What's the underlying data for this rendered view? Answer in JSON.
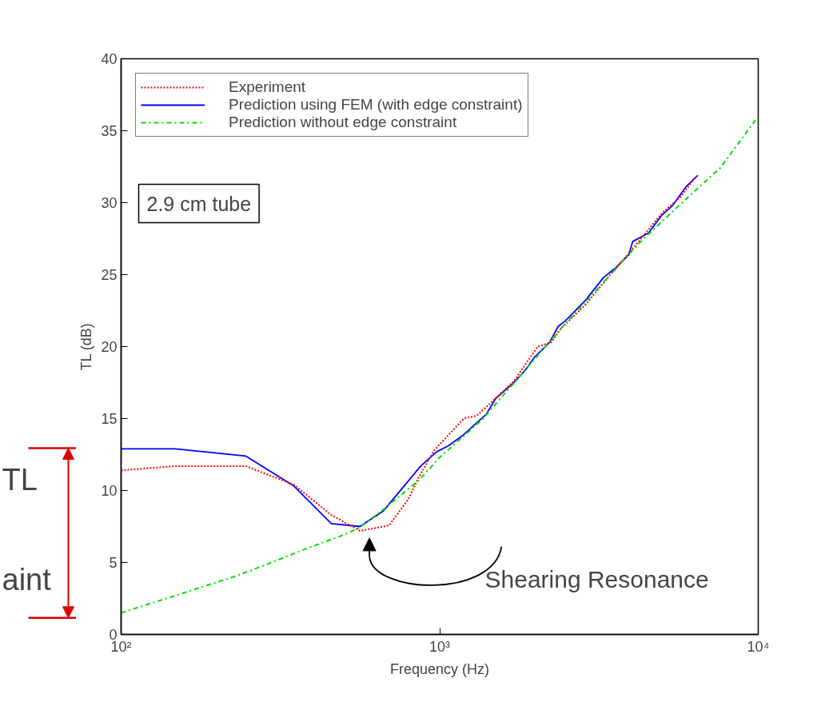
{
  "chart_data": {
    "type": "line",
    "xlabel": "Frequency (Hz)",
    "ylabel": "TL (dB)",
    "log": "x",
    "xlim": [
      100,
      10000
    ],
    "xticks": [
      {
        "value": 100,
        "label": "10²"
      },
      {
        "value": 1000,
        "label": "10³"
      },
      {
        "value": 10000,
        "label": "10⁴"
      }
    ],
    "ylim": [
      0,
      40
    ],
    "yticks": [
      0,
      5,
      10,
      15,
      20,
      25,
      30,
      35,
      40
    ],
    "grid": false,
    "legend": "top left",
    "series": [
      {
        "name": "Experiment",
        "color": "#ff0000",
        "line_style": "dotted",
        "x": [
          100,
          148,
          246,
          349,
          457,
          562,
          667,
          695,
          797,
          859,
          962,
          1191,
          1306,
          1482,
          1710,
          2031,
          2239,
          2411,
          2865,
          3404,
          4036,
          5000,
          5700,
          6310
        ],
        "values": [
          11.4,
          11.7,
          11.7,
          10.4,
          8.3,
          7.2,
          7.5,
          7.6,
          9.4,
          10.9,
          12.8,
          15.0,
          15.2,
          16.3,
          17.6,
          20.0,
          20.3,
          21.3,
          22.9,
          24.9,
          26.8,
          29.3,
          30.4,
          31.7
        ]
      },
      {
        "name": "Prediction using FEM (with edge constraint)",
        "color": "#0000ff",
        "line_style": "solid",
        "x": [
          100,
          148,
          246,
          349,
          457,
          562,
          667,
          872,
          980,
          1063,
          1178,
          1400,
          1500,
          1710,
          1863,
          1973,
          2213,
          2355,
          2483,
          2865,
          3268,
          3583,
          3926,
          4036,
          4530,
          4965,
          5383,
          5929,
          6460
        ],
        "values": [
          12.9,
          12.9,
          12.4,
          10.3,
          7.7,
          7.5,
          8.6,
          11.7,
          12.7,
          13.1,
          13.8,
          15.3,
          16.4,
          17.5,
          18.4,
          19.2,
          20.3,
          21.4,
          21.8,
          23.2,
          24.8,
          25.5,
          26.4,
          27.3,
          27.9,
          29.1,
          29.8,
          31.1,
          31.9
        ]
      },
      {
        "name": "Prediction without edge constraint",
        "color": "#00dd00",
        "line_style": "dashdot",
        "x": [
          100,
          148,
          229,
          289,
          385,
          484,
          559,
          667,
          859,
          1000,
          1356,
          1811,
          2411,
          3213,
          4277,
          5700,
          7590,
          10000
        ],
        "values": [
          1.5,
          2.7,
          4.05,
          4.9,
          6.0,
          6.8,
          7.4,
          8.7,
          10.7,
          12.3,
          14.9,
          18.1,
          21.3,
          24.3,
          27.3,
          29.9,
          32.4,
          36.0
        ]
      }
    ],
    "annotations": [
      "2.9 cm tube",
      "Shearing Resonance",
      "TL",
      "aint"
    ]
  }
}
